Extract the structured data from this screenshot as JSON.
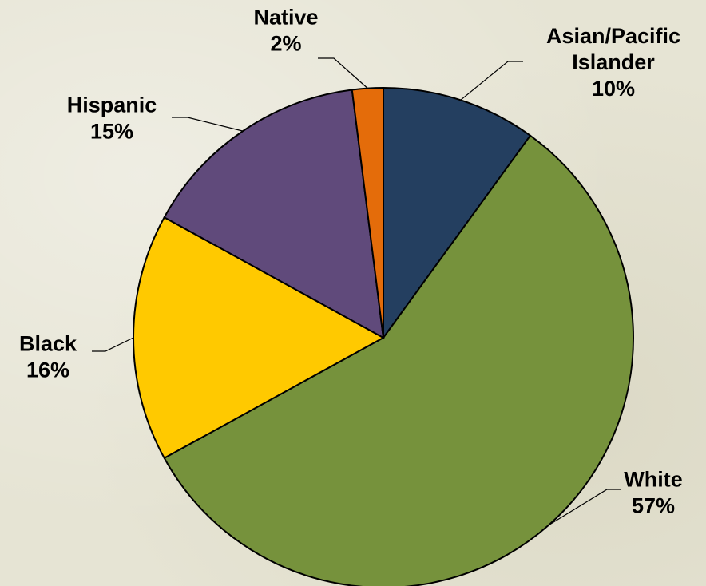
{
  "chart_data": {
    "type": "pie",
    "start": "top (12 o'clock), clockwise",
    "slices": [
      {
        "label_lines": [
          "Asian/Pacific",
          "Islander"
        ],
        "label": "Asian/Pacific Islander",
        "value": 10,
        "value_label": "10%",
        "color": "#243f60"
      },
      {
        "label_lines": [
          "White"
        ],
        "label": "White",
        "value": 57,
        "value_label": "57%",
        "color": "#76923c"
      },
      {
        "label_lines": [
          "Black"
        ],
        "label": "Black",
        "value": 16,
        "value_label": "16%",
        "color": "#ffc900"
      },
      {
        "label_lines": [
          "Hispanic"
        ],
        "label": "Hispanic",
        "value": 15,
        "value_label": "15%",
        "color": "#604a7b"
      },
      {
        "label_lines": [
          "Native"
        ],
        "label": "Native",
        "value": 2,
        "value_label": "2%",
        "color": "#e46c0a"
      }
    ]
  }
}
